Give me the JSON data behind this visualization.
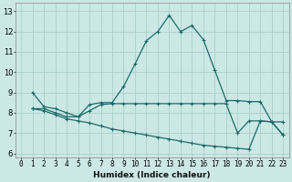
{
  "xlabel": "Humidex (Indice chaleur)",
  "bg_color": "#cce8e4",
  "grid_color": "#aad0cc",
  "line_color": "#1a6b6b",
  "xlim": [
    -0.5,
    23.5
  ],
  "ylim": [
    5.8,
    13.4
  ],
  "yticks": [
    6,
    7,
    8,
    9,
    10,
    11,
    12,
    13
  ],
  "xticks": [
    0,
    1,
    2,
    3,
    4,
    5,
    6,
    7,
    8,
    9,
    10,
    11,
    12,
    13,
    14,
    15,
    16,
    17,
    18,
    19,
    20,
    21,
    22,
    23
  ],
  "curve1_x": [
    1,
    2,
    3,
    4,
    5,
    6,
    7,
    8,
    9,
    10,
    11,
    12,
    13,
    14,
    15,
    16,
    17,
    18,
    19,
    20,
    21,
    22,
    23
  ],
  "curve1_y": [
    9.0,
    8.3,
    8.2,
    8.0,
    7.8,
    8.4,
    8.5,
    8.5,
    9.3,
    10.4,
    11.55,
    12.0,
    12.8,
    12.0,
    12.3,
    11.6,
    10.1,
    8.6,
    8.6,
    8.55,
    8.55,
    7.55,
    6.9
  ],
  "curve2_x": [
    1,
    2,
    3,
    4,
    5,
    6,
    7,
    8,
    9,
    10,
    11,
    12,
    13,
    14,
    15,
    16,
    17,
    18,
    19,
    20,
    21,
    22,
    23
  ],
  "curve2_y": [
    8.2,
    8.2,
    8.0,
    7.8,
    7.8,
    8.1,
    8.4,
    8.45,
    8.45,
    8.45,
    8.45,
    8.45,
    8.45,
    8.45,
    8.45,
    8.45,
    8.45,
    8.45,
    7.0,
    7.6,
    7.6,
    7.55,
    7.55
  ],
  "curve3_x": [
    1,
    2,
    3,
    4,
    5,
    6,
    7,
    8,
    9,
    10,
    11,
    12,
    13,
    14,
    15,
    16,
    17,
    18,
    19,
    20,
    21,
    22,
    23
  ],
  "curve3_y": [
    8.2,
    8.1,
    7.9,
    7.7,
    7.6,
    7.5,
    7.35,
    7.2,
    7.1,
    7.0,
    6.9,
    6.8,
    6.7,
    6.6,
    6.5,
    6.4,
    6.35,
    6.3,
    6.25,
    6.2,
    7.6,
    7.55,
    6.9
  ],
  "tick_fontsize": 5.5,
  "xlabel_fontsize": 6.5
}
